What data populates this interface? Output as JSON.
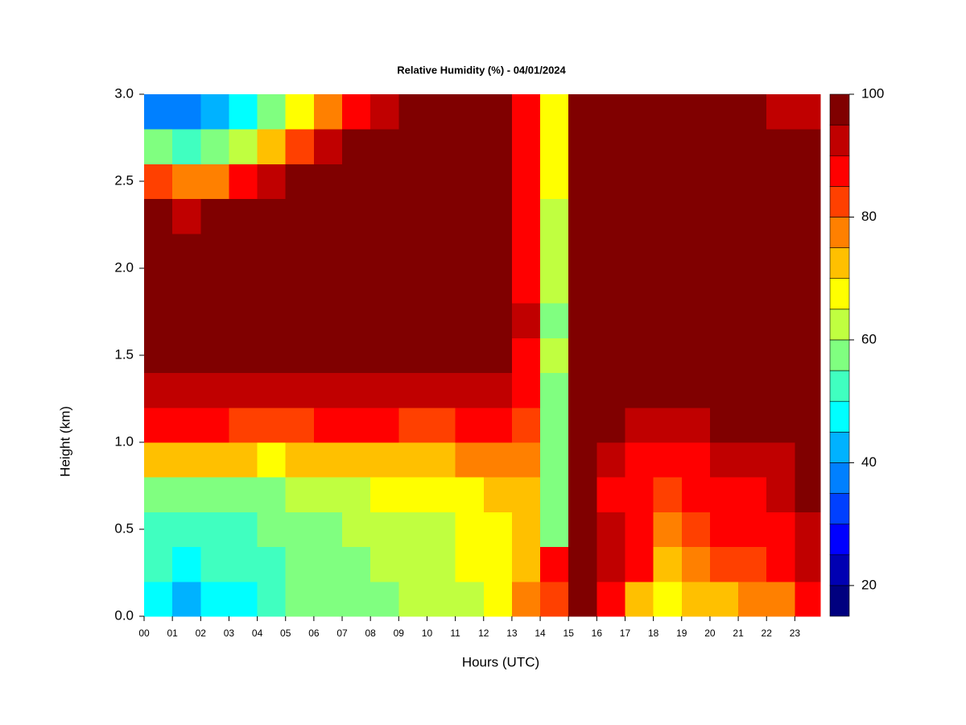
{
  "chart_data": {
    "type": "contour",
    "title": "Relative Humidity (%) - 04/01/2024",
    "x_label": "Hours (UTC)",
    "y_label": "Height (km)",
    "xlim": [
      0,
      23.9
    ],
    "ylim": [
      0,
      3
    ],
    "xticks": [
      {
        "value": 0,
        "label": "00"
      },
      {
        "value": 1,
        "label": "01"
      },
      {
        "value": 2,
        "label": "02"
      },
      {
        "value": 3,
        "label": "03"
      },
      {
        "value": 4,
        "label": "04"
      },
      {
        "value": 5,
        "label": "05"
      },
      {
        "value": 6,
        "label": "06"
      },
      {
        "value": 7,
        "label": "07"
      },
      {
        "value": 8,
        "label": "08"
      },
      {
        "value": 9,
        "label": "09"
      },
      10,
      11,
      12,
      13,
      14,
      15,
      16,
      17,
      18,
      19,
      20,
      21,
      22,
      23
    ],
    "yticks": [
      {
        "value": 0,
        "label": "0.0"
      },
      {
        "value": 0.5,
        "label": "0.5"
      },
      {
        "value": 1,
        "label": "1.0"
      },
      {
        "value": 1.5,
        "label": "1.5"
      },
      {
        "value": 2,
        "label": "2.0"
      },
      {
        "value": 2.5,
        "label": "2.5"
      },
      {
        "value": 3,
        "label": "3.0"
      }
    ],
    "x": [
      0,
      1,
      2,
      3,
      4,
      5,
      6,
      7,
      8,
      9,
      10,
      11,
      12,
      13,
      14,
      15,
      16,
      17,
      18,
      19,
      20,
      21,
      22,
      23
    ],
    "y": [
      0,
      0.2,
      0.4,
      0.6,
      0.8,
      1.0,
      1.2,
      1.4,
      1.6,
      1.8,
      2.0,
      2.2,
      2.4,
      2.6,
      2.8
    ],
    "z": [
      [
        45,
        42,
        45,
        48,
        52,
        55,
        55,
        56,
        58,
        60,
        62,
        64,
        66,
        75,
        82,
        95,
        88,
        72,
        68,
        72,
        74,
        75,
        78,
        85
      ],
      [
        50,
        48,
        50,
        52,
        54,
        55,
        56,
        58,
        60,
        62,
        63,
        66,
        68,
        70,
        85,
        100,
        92,
        85,
        70,
        76,
        80,
        82,
        85,
        90
      ],
      [
        52,
        52,
        52,
        54,
        55,
        55,
        57,
        60,
        62,
        63,
        64,
        67,
        69,
        70,
        58,
        100,
        90,
        88,
        75,
        82,
        85,
        86,
        88,
        92
      ],
      [
        58,
        58,
        58,
        58,
        58,
        60,
        62,
        64,
        66,
        66,
        67,
        69,
        71,
        72,
        55,
        100,
        88,
        85,
        80,
        85,
        88,
        88,
        90,
        95
      ],
      [
        70,
        70,
        70,
        70,
        68,
        70,
        72,
        72,
        73,
        73,
        74,
        75,
        77,
        75,
        55,
        100,
        90,
        87,
        85,
        88,
        92,
        92,
        93,
        97
      ],
      [
        85,
        85,
        85,
        82,
        80,
        82,
        85,
        85,
        85,
        83,
        84,
        85,
        87,
        80,
        58,
        100,
        95,
        92,
        92,
        93,
        96,
        97,
        98,
        100
      ],
      [
        92,
        92,
        92,
        90,
        90,
        92,
        93,
        93,
        92,
        92,
        92,
        93,
        94,
        85,
        58,
        100,
        98,
        95,
        95,
        97,
        100,
        100,
        100,
        100
      ],
      [
        100,
        100,
        98,
        97,
        97,
        98,
        98,
        98,
        98,
        100,
        100,
        98,
        98,
        88,
        60,
        100,
        100,
        100,
        100,
        100,
        100,
        100,
        100,
        100
      ],
      [
        100,
        100,
        100,
        100,
        100,
        100,
        100,
        100,
        100,
        100,
        100,
        100,
        100,
        90,
        58,
        100,
        100,
        100,
        100,
        100,
        100,
        100,
        100,
        100
      ],
      [
        100,
        100,
        100,
        100,
        100,
        100,
        100,
        100,
        100,
        100,
        100,
        100,
        100,
        88,
        62,
        100,
        100,
        100,
        100,
        100,
        100,
        100,
        100,
        100
      ],
      [
        100,
        100,
        100,
        100,
        100,
        100,
        100,
        100,
        100,
        100,
        100,
        100,
        100,
        88,
        62,
        100,
        100,
        100,
        100,
        100,
        100,
        100,
        100,
        100
      ],
      [
        95,
        92,
        95,
        100,
        100,
        100,
        100,
        100,
        100,
        100,
        100,
        100,
        100,
        88,
        62,
        100,
        100,
        100,
        100,
        100,
        100,
        100,
        100,
        100
      ],
      [
        80,
        75,
        78,
        85,
        92,
        95,
        100,
        100,
        100,
        100,
        100,
        100,
        100,
        88,
        65,
        100,
        100,
        100,
        100,
        100,
        100,
        100,
        100,
        100
      ],
      [
        55,
        50,
        55,
        62,
        72,
        82,
        90,
        95,
        100,
        100,
        100,
        100,
        100,
        88,
        65,
        100,
        100,
        100,
        100,
        100,
        100,
        100,
        100,
        95
      ],
      [
        35,
        35,
        40,
        48,
        55,
        65,
        75,
        85,
        92,
        100,
        100,
        100,
        100,
        88,
        65,
        100,
        100,
        100,
        100,
        100,
        100,
        100,
        92,
        90
      ]
    ],
    "levels": [
      15,
      20,
      25,
      30,
      35,
      40,
      45,
      50,
      55,
      60,
      65,
      70,
      75,
      80,
      85,
      90,
      95,
      100
    ],
    "colors": [
      "#00007f",
      "#0000b2",
      "#0000ff",
      "#0040ff",
      "#0080ff",
      "#00b2ff",
      "#00ffff",
      "#40ffc0",
      "#80ff80",
      "#c0ff40",
      "#ffff00",
      "#ffc000",
      "#ff8000",
      "#ff4000",
      "#ff0000",
      "#c00000",
      "#800000"
    ],
    "zticks": [
      20,
      40,
      60,
      80,
      100
    ]
  }
}
